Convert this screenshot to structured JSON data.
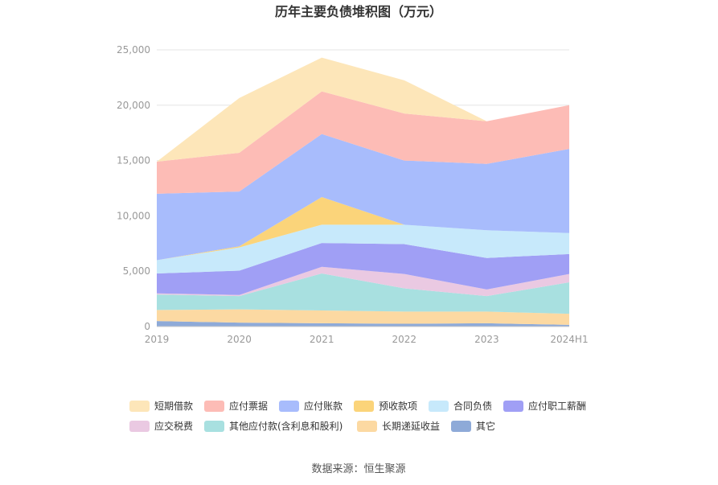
{
  "chart_data": {
    "type": "area",
    "stacked": true,
    "title": "历年主要负债堆积图（万元）",
    "source": "数据来源：恒生聚源",
    "categories": [
      "2019",
      "2020",
      "2021",
      "2022",
      "2023",
      "2024H1"
    ],
    "ylim": [
      0,
      25000
    ],
    "yticks": [
      "0",
      "5,000",
      "10,000",
      "15,000",
      "20,000",
      "25,000"
    ],
    "grid": true,
    "legend_position": "bottom",
    "series": [
      {
        "name": "其它",
        "color": "#8eaad8",
        "values": [
          500,
          350,
          300,
          250,
          300,
          150
        ]
      },
      {
        "name": "长期递延收益",
        "color": "#fcd9a2",
        "values": [
          1000,
          1200,
          1150,
          1100,
          1050,
          1000
        ]
      },
      {
        "name": "其他应付款(含利息和股利)",
        "color": "#a8e0e0",
        "values": [
          1400,
          1200,
          3350,
          2100,
          1400,
          2850
        ]
      },
      {
        "name": "应交税费",
        "color": "#eac9e2",
        "values": [
          100,
          100,
          600,
          1300,
          600,
          750
        ]
      },
      {
        "name": "应付职工薪酬",
        "color": "#a09ff5",
        "values": [
          1800,
          2200,
          2150,
          2700,
          2850,
          1800
        ]
      },
      {
        "name": "合同负债",
        "color": "#c7e9fb",
        "values": [
          1200,
          2100,
          1650,
          1750,
          2500,
          1900
        ]
      },
      {
        "name": "预收款项",
        "color": "#fbd47a",
        "values": [
          0,
          100,
          2500,
          0,
          0,
          0
        ]
      },
      {
        "name": "应付账款",
        "color": "#a8bcfc",
        "values": [
          6000,
          4950,
          5700,
          5800,
          6000,
          7600
        ]
      },
      {
        "name": "应付票据",
        "color": "#fdbcb6",
        "values": [
          2900,
          3500,
          3850,
          4250,
          3850,
          3950
        ]
      },
      {
        "name": "短期借款",
        "color": "#fde6b9",
        "values": [
          0,
          4950,
          3050,
          3000,
          0,
          0
        ]
      }
    ],
    "legend_order": [
      "短期借款",
      "应付票据",
      "应付账款",
      "预收款项",
      "合同负债",
      "应付职工薪酬",
      "应交税费",
      "其他应付款(含利息和股利)",
      "长期递延收益",
      "其它"
    ]
  }
}
